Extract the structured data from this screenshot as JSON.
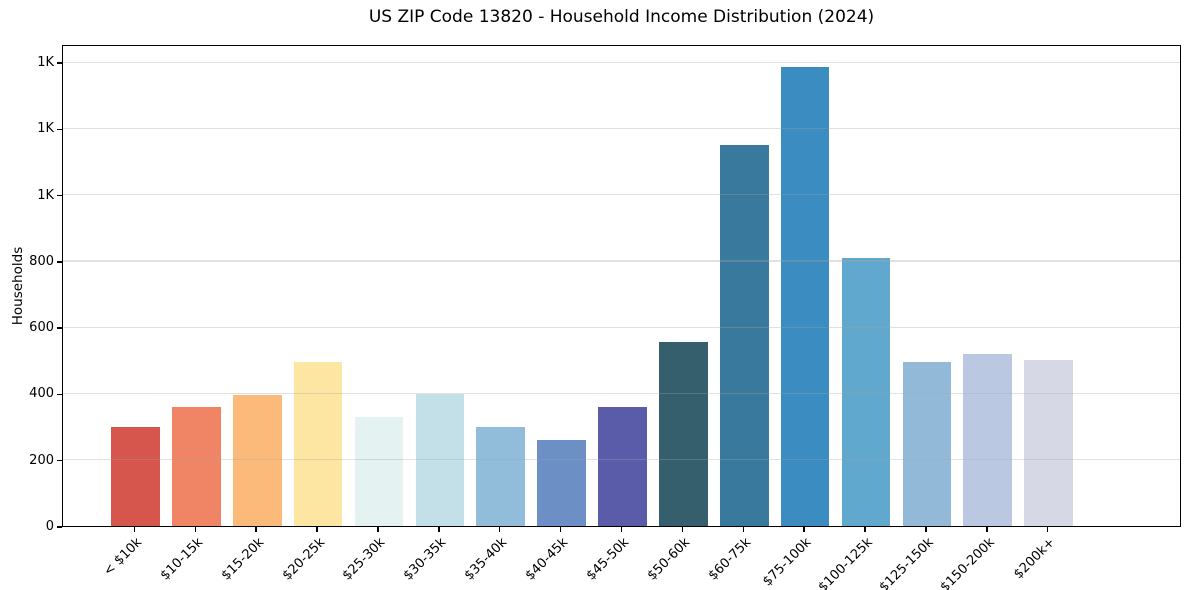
{
  "chart_data": {
    "type": "bar",
    "title": "US ZIP Code 13820 - Household Income Distribution (2024)",
    "xlabel": "",
    "ylabel": "Households",
    "categories": [
      "< $10k",
      "$10-15k",
      "$15-20k",
      "$20-25k",
      "$25-30k",
      "$30-35k",
      "$35-40k",
      "$40-45k",
      "$45-50k",
      "$50-60k",
      "$60-75k",
      "$75-100k",
      "$100-125k",
      "$125-150k",
      "$150-200k",
      "$200k+"
    ],
    "values": [
      300,
      360,
      395,
      495,
      330,
      400,
      300,
      260,
      358,
      555,
      1150,
      1385,
      810,
      495,
      520,
      500
    ],
    "bar_colors": [
      "#d6564e",
      "#f08566",
      "#fcba7a",
      "#fde5a2",
      "#e4f2f2",
      "#c3e0e9",
      "#91bddb",
      "#6c90c5",
      "#5a5ca9",
      "#365f6e",
      "#38799d",
      "#3a8cc1",
      "#60a8ce",
      "#93b9d9",
      "#bac9e1",
      "#d7d8e6"
    ],
    "ylim": [
      0,
      1455
    ],
    "yticks": [
      {
        "value": 0,
        "label": "0"
      },
      {
        "value": 200,
        "label": "200"
      },
      {
        "value": 400,
        "label": "400"
      },
      {
        "value": 600,
        "label": "600"
      },
      {
        "value": 800,
        "label": "800"
      },
      {
        "value": 1000,
        "label": "1K"
      },
      {
        "value": 1200,
        "label": "1K"
      },
      {
        "value": 1400,
        "label": "1K"
      }
    ],
    "grid": "horizontal",
    "legend": "none",
    "background_color": "#ffffff",
    "grid_color": "#e9e9e9",
    "axis_color": "#000000"
  }
}
